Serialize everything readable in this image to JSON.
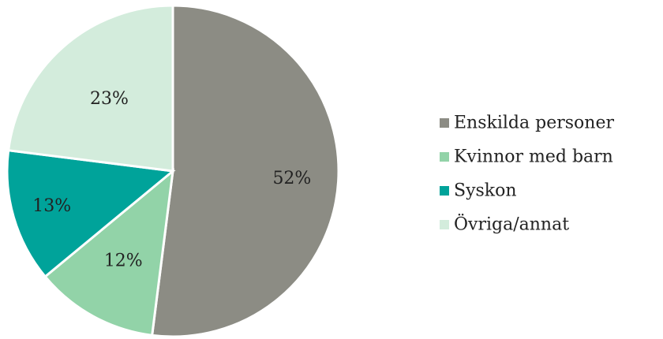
{
  "chart_data": {
    "type": "pie",
    "categories": [
      "Enskilda personer",
      "Kvinnor med barn",
      "Syskon",
      "Övriga/annat"
    ],
    "values": [
      52,
      12,
      13,
      23
    ],
    "data_labels": [
      "52%",
      "12%",
      "13%",
      "23%"
    ],
    "colors": [
      "#8c8c84",
      "#92d3a8",
      "#00a39a",
      "#d3ecdc"
    ],
    "title": "",
    "legend_position": "right"
  }
}
